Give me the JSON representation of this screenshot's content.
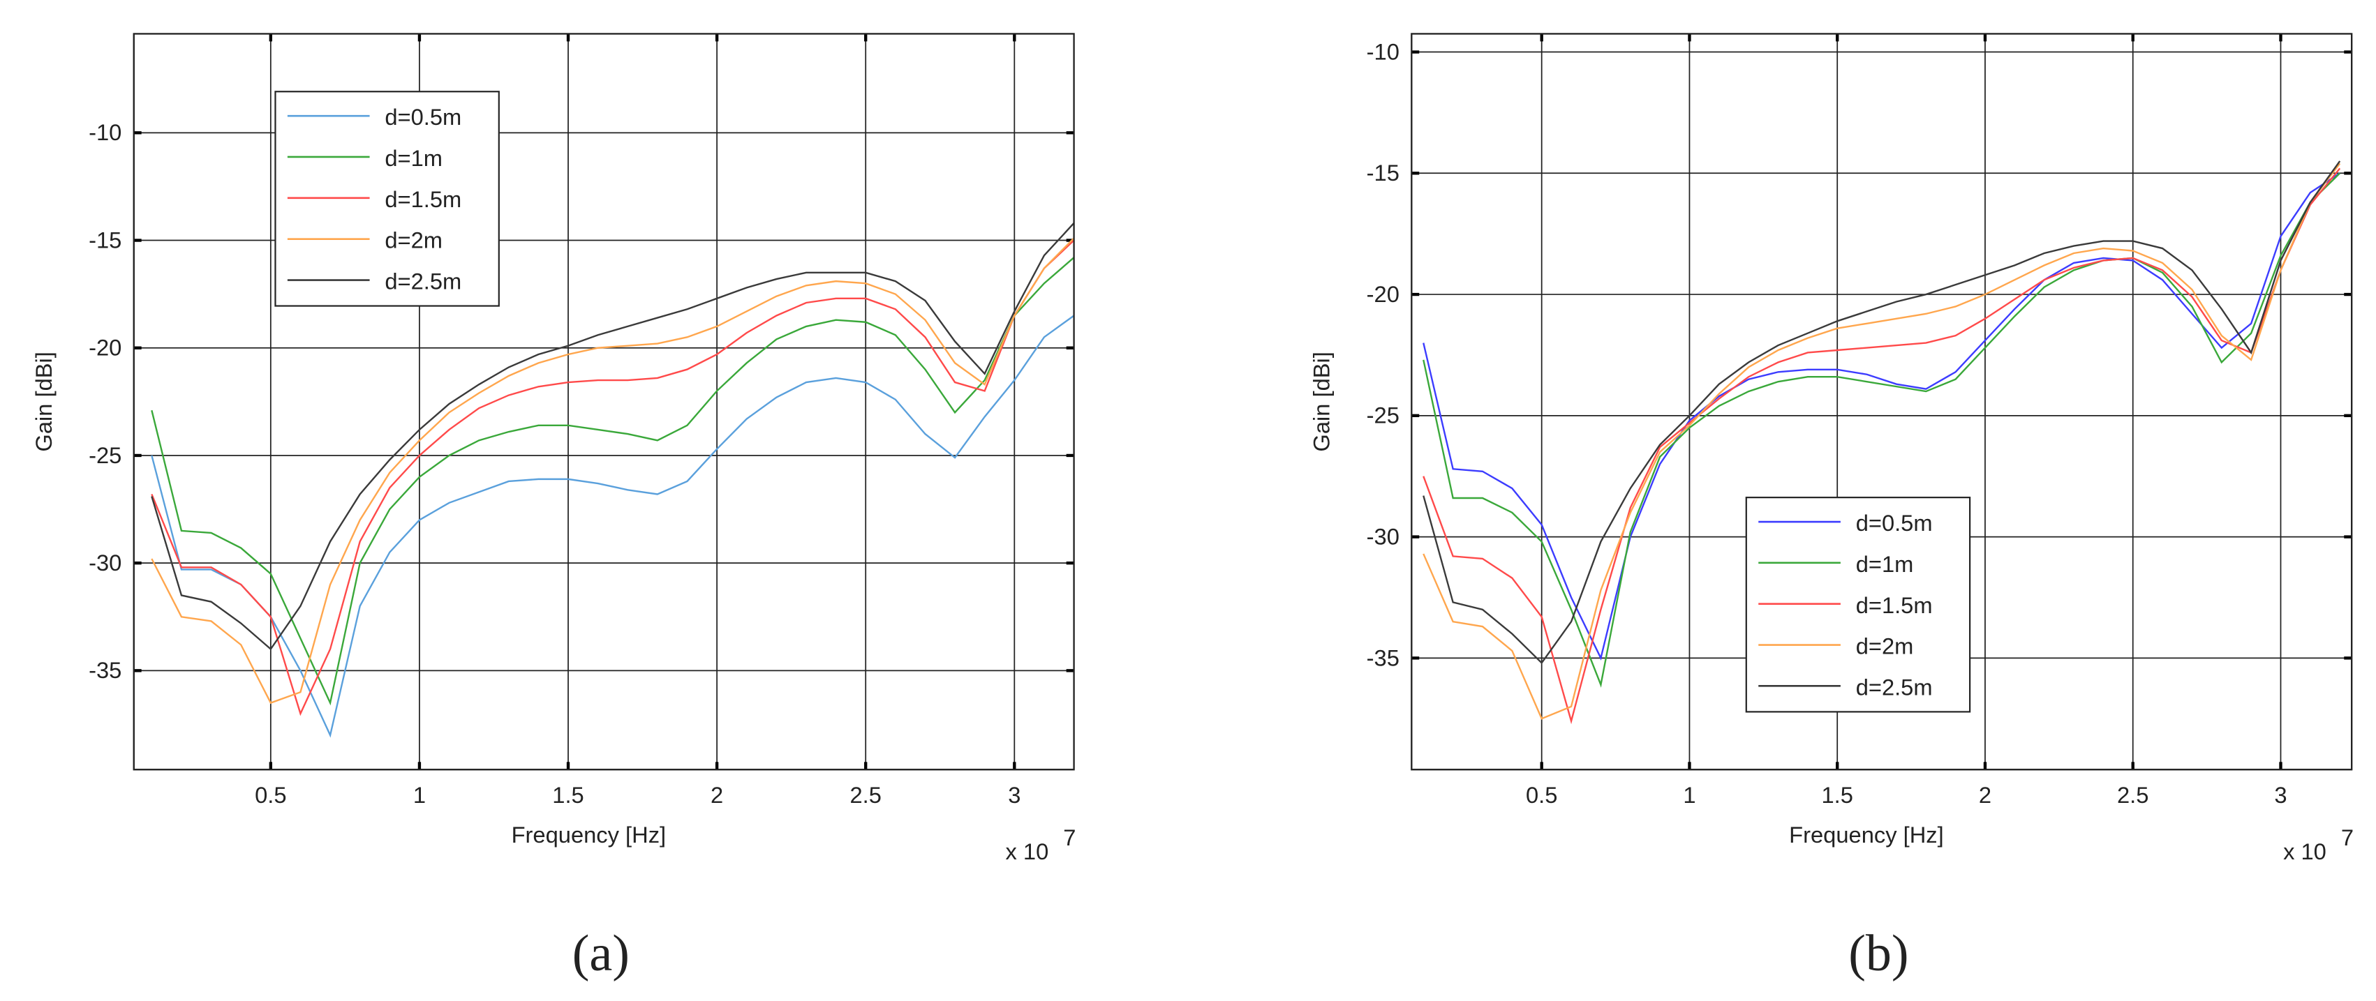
{
  "chart_data": [
    {
      "type": "line",
      "caption": "(a)",
      "x_label": "Frequency [Hz]",
      "y_label": "Gain [dBi]",
      "x_multiplier": "x 10",
      "x_multiplier_exponent": "7",
      "grid": true,
      "legend": "upper left",
      "xlim": [
        0.04,
        3.2
      ],
      "xticks": [
        0.5,
        1,
        1.5,
        2,
        2.5,
        3
      ],
      "ylim": [
        -39.6,
        -5.4
      ],
      "yticks": [
        -35,
        -30,
        -25,
        -20,
        -15,
        -10
      ],
      "x": [
        0.1,
        0.2,
        0.3,
        0.4,
        0.5,
        0.6,
        0.7,
        0.8,
        0.9,
        1.0,
        1.1,
        1.2,
        1.3,
        1.4,
        1.5,
        1.6,
        1.7,
        1.8,
        1.9,
        2.0,
        2.1,
        2.2,
        2.3,
        2.4,
        2.5,
        2.6,
        2.7,
        2.8,
        2.9,
        3.0,
        3.1,
        3.2
      ],
      "series": [
        {
          "name": "d=0.5m",
          "color": "#5aa0dc",
          "values": [
            -25,
            -30.3,
            -30.3,
            -31,
            -32.5,
            -35,
            -38,
            -32,
            -29.5,
            -28,
            -27.2,
            -26.7,
            -26.2,
            -26.1,
            -26.1,
            -26.3,
            -26.6,
            -26.8,
            -26.2,
            -24.7,
            -23.3,
            -22.3,
            -21.6,
            -21.4,
            -21.6,
            -22.4,
            -24,
            -25.1,
            -23.2,
            -21.5,
            -19.5,
            -18.5
          ]
        },
        {
          "name": "d=1m",
          "color": "#3aa83a",
          "values": [
            -22.9,
            -28.5,
            -28.6,
            -29.3,
            -30.5,
            -33.5,
            -36.5,
            -30,
            -27.5,
            -26,
            -25,
            -24.3,
            -23.9,
            -23.6,
            -23.6,
            -23.8,
            -24,
            -24.3,
            -23.6,
            -22,
            -20.7,
            -19.6,
            -19,
            -18.7,
            -18.8,
            -19.4,
            -21,
            -23,
            -21.5,
            -18.5,
            -17,
            -15.8
          ]
        },
        {
          "name": "d=1.5m",
          "color": "#ff4a4a",
          "values": [
            -26.8,
            -30.2,
            -30.2,
            -31,
            -32.5,
            -37,
            -34,
            -29,
            -26.5,
            -25,
            -23.8,
            -22.8,
            -22.2,
            -21.8,
            -21.6,
            -21.5,
            -21.5,
            -21.4,
            -21,
            -20.3,
            -19.3,
            -18.5,
            -17.9,
            -17.7,
            -17.7,
            -18.2,
            -19.5,
            -21.6,
            -22,
            -18.5,
            -16.3,
            -15
          ]
        },
        {
          "name": "d=2m",
          "color": "#ffa64d",
          "values": [
            -29.8,
            -32.5,
            -32.7,
            -33.8,
            -36.5,
            -36,
            -31,
            -28,
            -25.8,
            -24.3,
            -23,
            -22.1,
            -21.3,
            -20.7,
            -20.3,
            -20,
            -19.9,
            -19.8,
            -19.5,
            -19,
            -18.3,
            -17.6,
            -17.1,
            -16.9,
            -17,
            -17.5,
            -18.7,
            -20.7,
            -21.7,
            -18.5,
            -16.3,
            -14.9
          ]
        },
        {
          "name": "d=2.5m",
          "color": "#3a3a3a",
          "values": [
            -26.9,
            -31.5,
            -31.8,
            -32.8,
            -34,
            -32,
            -29,
            -26.8,
            -25.2,
            -23.8,
            -22.6,
            -21.7,
            -20.9,
            -20.3,
            -19.9,
            -19.4,
            -19,
            -18.6,
            -18.2,
            -17.7,
            -17.2,
            -16.8,
            -16.5,
            -16.5,
            -16.5,
            -16.9,
            -17.8,
            -19.7,
            -21.2,
            -18.3,
            -15.7,
            -14.2
          ]
        }
      ]
    },
    {
      "type": "line",
      "caption": "(b)",
      "x_label": "Frequency [Hz]",
      "y_label": "Gain [dBi]",
      "x_multiplier": "x 10",
      "x_multiplier_exponent": "7",
      "grid": true,
      "legend": "lower left",
      "xlim": [
        0.06,
        3.24
      ],
      "xticks": [
        0.5,
        1,
        1.5,
        2,
        2.5,
        3
      ],
      "ylim": [
        -39.6,
        -9.25
      ],
      "yticks": [
        -35,
        -30,
        -25,
        -20,
        -15,
        -10
      ],
      "x": [
        0.1,
        0.2,
        0.3,
        0.4,
        0.5,
        0.6,
        0.7,
        0.8,
        0.9,
        1.0,
        1.1,
        1.2,
        1.3,
        1.4,
        1.5,
        1.6,
        1.7,
        1.8,
        1.9,
        2.0,
        2.1,
        2.2,
        2.3,
        2.4,
        2.5,
        2.6,
        2.7,
        2.8,
        2.9,
        3.0,
        3.1,
        3.2
      ],
      "series": [
        {
          "name": "d=0.5m",
          "color": "#3c3cff",
          "values": [
            -22,
            -27.2,
            -27.3,
            -28,
            -29.5,
            -32.5,
            -35,
            -30,
            -27,
            -25.2,
            -24.2,
            -23.5,
            -23.2,
            -23.1,
            -23.1,
            -23.3,
            -23.7,
            -23.9,
            -23.2,
            -21.9,
            -20.6,
            -19.4,
            -18.7,
            -18.5,
            -18.6,
            -19.4,
            -20.8,
            -22.2,
            -21.2,
            -17.6,
            -15.8,
            -15
          ]
        },
        {
          "name": "d=1m",
          "color": "#3aa83a",
          "values": [
            -22.7,
            -28.4,
            -28.4,
            -29,
            -30.2,
            -33,
            -36.1,
            -29.8,
            -26.7,
            -25.5,
            -24.6,
            -24,
            -23.6,
            -23.4,
            -23.4,
            -23.6,
            -23.8,
            -24,
            -23.5,
            -22.2,
            -20.9,
            -19.7,
            -19,
            -18.6,
            -18.5,
            -19.1,
            -20.5,
            -22.8,
            -21.6,
            -18.4,
            -16.2,
            -15
          ]
        },
        {
          "name": "d=1.5m",
          "color": "#ff4a4a",
          "values": [
            -27.5,
            -30.8,
            -30.9,
            -31.7,
            -33.3,
            -37.6,
            -33,
            -28.8,
            -26.3,
            -25.3,
            -24.3,
            -23.4,
            -22.8,
            -22.4,
            -22.3,
            -22.2,
            -22.1,
            -22,
            -21.7,
            -21,
            -20.2,
            -19.4,
            -18.9,
            -18.6,
            -18.5,
            -19,
            -20.1,
            -21.9,
            -22.4,
            -19,
            -16.3,
            -14.8
          ]
        },
        {
          "name": "d=2m",
          "color": "#ffa64d",
          "values": [
            -30.7,
            -33.5,
            -33.7,
            -34.7,
            -37.5,
            -37,
            -32.2,
            -29,
            -26.5,
            -25.4,
            -24.1,
            -23,
            -22.3,
            -21.8,
            -21.4,
            -21.2,
            -21,
            -20.8,
            -20.5,
            -20,
            -19.4,
            -18.8,
            -18.3,
            -18.1,
            -18.2,
            -18.7,
            -19.8,
            -21.7,
            -22.7,
            -19,
            -16.2,
            -14.6
          ]
        },
        {
          "name": "d=2.5m",
          "color": "#3a3a3a",
          "values": [
            -28.3,
            -32.7,
            -33,
            -34,
            -35.2,
            -33.5,
            -30.2,
            -28,
            -26.2,
            -25,
            -23.7,
            -22.8,
            -22.1,
            -21.6,
            -21.1,
            -20.7,
            -20.3,
            -20,
            -19.6,
            -19.2,
            -18.8,
            -18.3,
            -18,
            -17.8,
            -17.8,
            -18.1,
            -19,
            -20.6,
            -22.4,
            -18.6,
            -16.2,
            -14.5
          ]
        }
      ]
    }
  ]
}
